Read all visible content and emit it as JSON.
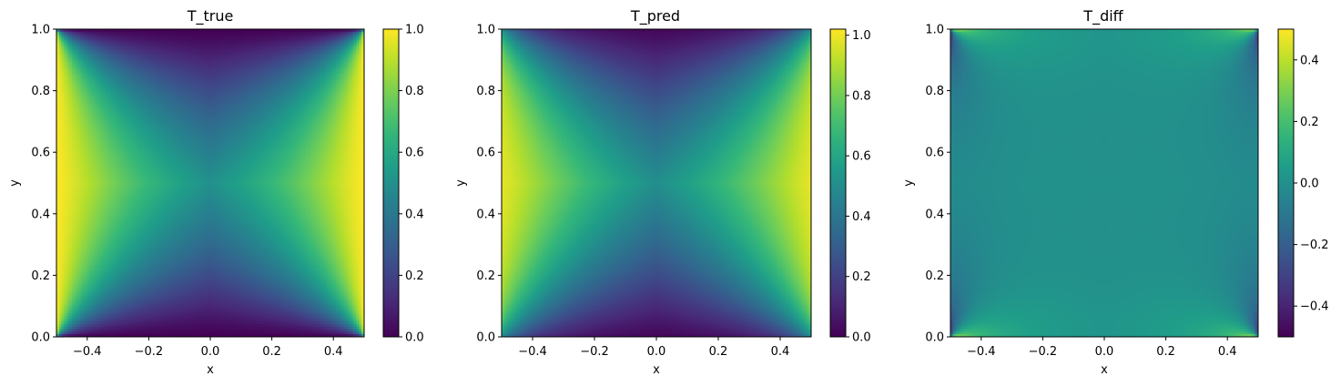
{
  "colormap": "viridis",
  "chart_data": [
    {
      "type": "heatmap",
      "title": "T_true",
      "xlabel": "x",
      "ylabel": "y",
      "xlim": [
        -0.5,
        0.5
      ],
      "ylim": [
        0.0,
        1.0
      ],
      "x_ticks": [
        "−0.4",
        "−0.2",
        "0.0",
        "0.2",
        "0.4"
      ],
      "y_ticks": [
        "0.0",
        "0.2",
        "0.4",
        "0.6",
        "0.8",
        "1.0"
      ],
      "colorbar": {
        "range": [
          0.0,
          1.0
        ],
        "ticks": [
          "0.0",
          "0.2",
          "0.4",
          "0.6",
          "0.8",
          "1.0"
        ]
      },
      "field": "true",
      "grid": false
    },
    {
      "type": "heatmap",
      "title": "T_pred",
      "xlabel": "x",
      "ylabel": "y",
      "xlim": [
        -0.5,
        0.5
      ],
      "ylim": [
        0.0,
        1.0
      ],
      "x_ticks": [
        "−0.4",
        "−0.2",
        "0.0",
        "0.2",
        "0.4"
      ],
      "y_ticks": [
        "0.0",
        "0.2",
        "0.4",
        "0.6",
        "0.8",
        "1.0"
      ],
      "colorbar": {
        "range": [
          0.0,
          1.02
        ],
        "ticks": [
          "0.0",
          "0.2",
          "0.4",
          "0.6",
          "0.8",
          "1.0"
        ]
      },
      "field": "pred",
      "grid": false
    },
    {
      "type": "heatmap",
      "title": "T_diff",
      "xlabel": "x",
      "ylabel": "y",
      "xlim": [
        -0.5,
        0.5
      ],
      "ylim": [
        0.0,
        1.0
      ],
      "x_ticks": [
        "−0.4",
        "−0.2",
        "0.0",
        "0.2",
        "0.4"
      ],
      "y_ticks": [
        "0.0",
        "0.2",
        "0.4",
        "0.6",
        "0.8",
        "1.0"
      ],
      "colorbar": {
        "range": [
          -0.5,
          0.5
        ],
        "ticks": [
          "−0.4",
          "−0.2",
          "0.0",
          "0.2",
          "0.4"
        ]
      },
      "field": "diff",
      "grid": false
    }
  ]
}
